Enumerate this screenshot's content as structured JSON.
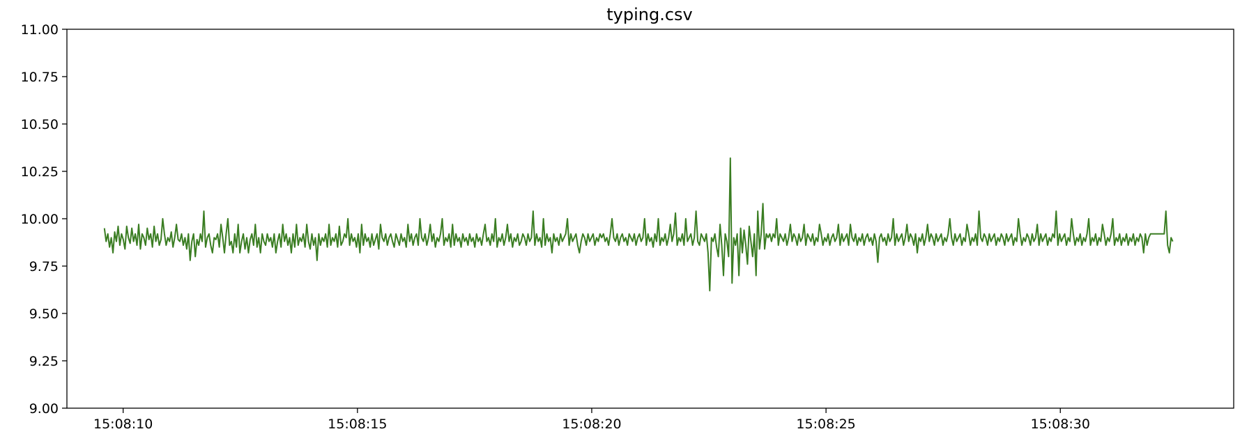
{
  "chart_data": {
    "type": "line",
    "title": "typing.csv",
    "xlabel": "",
    "ylabel": "",
    "x_start": "15:08:09.6",
    "x_end": "15:08:32.4",
    "xlim": [
      "15:08:08.8",
      "15:08:33.7"
    ],
    "ylim": [
      9.0,
      11.0
    ],
    "x_ticks": [
      "15:08:10",
      "15:08:15",
      "15:08:20",
      "15:08:25",
      "15:08:30"
    ],
    "y_ticks": [
      "11.00",
      "10.75",
      "10.50",
      "10.25",
      "10.00",
      "9.75",
      "9.50",
      "9.25",
      "9.00"
    ],
    "grid": false,
    "line_color": "#3a7d22",
    "series": [
      {
        "values": [
          9.95,
          9.88,
          9.92,
          9.85,
          9.9,
          9.82,
          9.93,
          9.88,
          9.96,
          9.86,
          9.92,
          9.89,
          9.84,
          9.96,
          9.9,
          9.87,
          9.95,
          9.88,
          9.92,
          9.86,
          9.97,
          9.84,
          9.92,
          9.9,
          9.86,
          9.95,
          9.89,
          9.92,
          9.85,
          9.96,
          9.88,
          9.92,
          9.86,
          9.89,
          10.0,
          9.92,
          9.86,
          9.9,
          9.88,
          9.93,
          9.85,
          9.9,
          9.97,
          9.89,
          9.88,
          9.92,
          9.86,
          9.9,
          9.84,
          9.92,
          9.78,
          9.88,
          9.92,
          9.8,
          9.89,
          9.86,
          9.92,
          9.88,
          10.04,
          9.85,
          9.9,
          9.92,
          9.86,
          9.82,
          9.9,
          9.89,
          9.92,
          9.85,
          9.97,
          9.9,
          9.82,
          9.92,
          10.0,
          9.86,
          9.88,
          9.82,
          9.92,
          9.85,
          9.97,
          9.82,
          9.88,
          9.92,
          9.84,
          9.9,
          9.82,
          9.89,
          9.92,
          9.86,
          9.97,
          9.85,
          9.9,
          9.82,
          9.92,
          9.88,
          9.86,
          9.92,
          9.88,
          9.9,
          9.85,
          9.92,
          9.82,
          9.88,
          9.92,
          9.85,
          9.97,
          9.88,
          9.92,
          9.86,
          9.9,
          9.82,
          9.92,
          9.85,
          9.97,
          9.86,
          9.9,
          9.88,
          9.92,
          9.85,
          9.97,
          9.88,
          9.84,
          9.92,
          9.86,
          9.9,
          9.78,
          9.92,
          9.86,
          9.9,
          9.88,
          9.92,
          9.85,
          9.97,
          9.86,
          9.9,
          9.88,
          9.92,
          9.85,
          9.96,
          9.86,
          9.88,
          9.92,
          9.9,
          10.0,
          9.86,
          9.92,
          9.88,
          9.9,
          9.85,
          9.92,
          9.82,
          9.97,
          9.86,
          9.92,
          9.88,
          9.9,
          9.85,
          9.92,
          9.86,
          9.89,
          9.92,
          9.84,
          9.97,
          9.9,
          9.88,
          9.92,
          9.86,
          9.9,
          9.92,
          9.88,
          9.85,
          9.92,
          9.89,
          9.86,
          9.92,
          9.88,
          9.9,
          9.85,
          9.97,
          9.88,
          9.92,
          9.86,
          9.9,
          9.92,
          9.86,
          10.0,
          9.9,
          9.88,
          9.92,
          9.86,
          9.9,
          9.97,
          9.88,
          9.92,
          9.85,
          9.9,
          9.88,
          9.92,
          10.0,
          9.86,
          9.9,
          9.88,
          9.92,
          9.85,
          9.97,
          9.86,
          9.92,
          9.88,
          9.9,
          9.85,
          9.92,
          9.88,
          9.9,
          9.86,
          9.92,
          9.88,
          9.9,
          9.85,
          9.92,
          9.88,
          9.9,
          9.86,
          9.92,
          9.97,
          9.88,
          9.9,
          9.86,
          9.92,
          9.88,
          10.0,
          9.85,
          9.9,
          9.88,
          9.92,
          9.86,
          9.9,
          9.97,
          9.88,
          9.92,
          9.85,
          9.9,
          9.88,
          9.92,
          9.86,
          9.88,
          9.92,
          9.9,
          9.86,
          9.92,
          9.88,
          9.9,
          10.04,
          9.86,
          9.92,
          9.88,
          9.9,
          9.85,
          10.0,
          9.86,
          9.92,
          9.88,
          9.9,
          9.82,
          9.92,
          9.88,
          9.9,
          9.86,
          9.92,
          9.88,
          9.9,
          9.92,
          10.0,
          9.86,
          9.92,
          9.88,
          9.9,
          9.92,
          9.86,
          9.82,
          9.88,
          9.92,
          9.9,
          9.86,
          9.92,
          9.88,
          9.9,
          9.92,
          9.86,
          9.9,
          9.88,
          9.92,
          9.9,
          9.92,
          9.88,
          9.9,
          9.86,
          9.92,
          10.0,
          9.9,
          9.88,
          9.92,
          9.86,
          9.9,
          9.92,
          9.88,
          9.9,
          9.86,
          9.92,
          9.9,
          9.88,
          9.92,
          9.86,
          9.9,
          9.92,
          9.88,
          9.9,
          10.0,
          9.86,
          9.92,
          9.88,
          9.9,
          9.85,
          9.92,
          9.88,
          10.0,
          9.86,
          9.9,
          9.88,
          9.92,
          9.86,
          9.9,
          9.97,
          9.88,
          9.92,
          10.03,
          9.86,
          9.9,
          9.88,
          9.92,
          9.86,
          10.0,
          9.88,
          9.9,
          9.92,
          9.86,
          9.9,
          10.04,
          9.88,
          9.86,
          9.92,
          9.9,
          9.88,
          9.92,
          9.82,
          9.62,
          9.9,
          9.88,
          9.92,
          9.85,
          9.8,
          9.97,
          9.86,
          9.7,
          9.92,
          9.88,
          9.8,
          10.32,
          9.66,
          9.9,
          9.86,
          9.92,
          9.7,
          9.95,
          9.82,
          9.94,
          9.86,
          9.76,
          9.96,
          9.88,
          9.8,
          9.92,
          9.7,
          10.04,
          9.84,
          9.92,
          10.08,
          9.84,
          9.92,
          9.9,
          9.92,
          9.88,
          9.92,
          9.9,
          10.0,
          9.86,
          9.92,
          9.9,
          9.88,
          9.92,
          9.86,
          9.9,
          9.97,
          9.88,
          9.92,
          9.9,
          9.86,
          9.92,
          9.88,
          9.9,
          9.97,
          9.86,
          9.92,
          9.9,
          9.88,
          9.92,
          9.86,
          9.9,
          9.88,
          9.97,
          9.92,
          9.86,
          9.9,
          9.88,
          9.92,
          9.86,
          9.9,
          9.92,
          9.88,
          9.9,
          9.97,
          9.86,
          9.92,
          9.88,
          9.9,
          9.92,
          9.86,
          9.97,
          9.9,
          9.88,
          9.92,
          9.86,
          9.9,
          9.88,
          9.92,
          9.86,
          9.9,
          9.92,
          9.88,
          9.9,
          9.86,
          9.92,
          9.88,
          9.77,
          9.9,
          9.92,
          9.88,
          9.9,
          9.86,
          9.92,
          9.88,
          9.9,
          10.0,
          9.86,
          9.92,
          9.88,
          9.9,
          9.92,
          9.86,
          9.9,
          9.97,
          9.88,
          9.92,
          9.9,
          9.86,
          9.92,
          9.82,
          9.9,
          9.88,
          9.92,
          9.86,
          9.9,
          9.97,
          9.88,
          9.92,
          9.9,
          9.86,
          9.92,
          9.88,
          9.9,
          9.92,
          9.86,
          9.9,
          9.88,
          9.92,
          10.0,
          9.9,
          9.86,
          9.92,
          9.88,
          9.9,
          9.92,
          9.86,
          9.9,
          9.88,
          9.97,
          9.92,
          9.86,
          9.9,
          9.88,
          9.92,
          9.86,
          10.04,
          9.9,
          9.88,
          9.92,
          9.9,
          9.86,
          9.92,
          9.88,
          9.9,
          9.92,
          9.86,
          9.9,
          9.88,
          9.92,
          9.9,
          9.86,
          9.92,
          9.88,
          9.9,
          9.92,
          9.86,
          9.9,
          9.88,
          10.0,
          9.92,
          9.86,
          9.9,
          9.88,
          9.92,
          9.9,
          9.86,
          9.92,
          9.88,
          9.9,
          9.97,
          9.86,
          9.92,
          9.88,
          9.9,
          9.92,
          9.86,
          9.9,
          9.88,
          9.92,
          9.9,
          10.04,
          9.86,
          9.92,
          9.88,
          9.9,
          9.92,
          9.86,
          9.9,
          9.88,
          10.0,
          9.92,
          9.86,
          9.9,
          9.88,
          9.92,
          9.86,
          9.9,
          9.88,
          9.92,
          10.0,
          9.86,
          9.9,
          9.88,
          9.92,
          9.86,
          9.9,
          9.88,
          9.97,
          9.92,
          9.86,
          9.9,
          9.88,
          9.92,
          10.0,
          9.86,
          9.9,
          9.88,
          9.92,
          9.86,
          9.9,
          9.88,
          9.92,
          9.86,
          9.9,
          9.88,
          9.92,
          9.86,
          9.9,
          9.88,
          9.92,
          9.9,
          9.82,
          9.92,
          9.86,
          9.9,
          9.92,
          9.92,
          9.92,
          9.92,
          9.92,
          9.92,
          9.92,
          9.92,
          9.92,
          10.04,
          9.86,
          9.82,
          9.9,
          9.88
        ]
      }
    ]
  }
}
